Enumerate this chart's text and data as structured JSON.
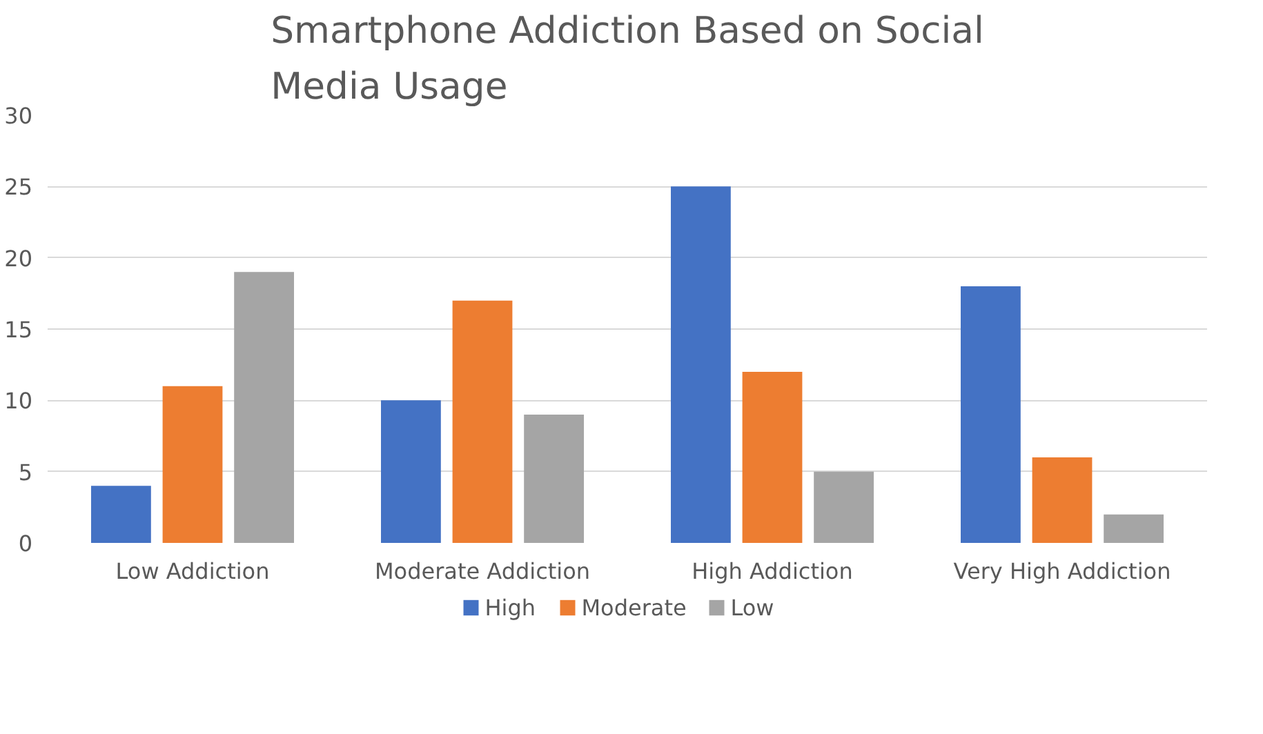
{
  "chart_data": {
    "type": "bar",
    "title": "Smartphone Addiction Based on Social Media Usage",
    "categories": [
      "Low Addiction",
      "Moderate Addiction",
      "High Addiction",
      "Very High Addiction"
    ],
    "series": [
      {
        "name": "High",
        "color": "#4472c4",
        "values": [
          4,
          10,
          25,
          18
        ]
      },
      {
        "name": "Moderate",
        "color": "#ed7d31",
        "values": [
          11,
          17,
          12,
          6
        ]
      },
      {
        "name": "Low",
        "color": "#a5a5a5",
        "values": [
          19,
          9,
          5,
          2
        ]
      }
    ],
    "ylim": [
      0,
      30
    ],
    "yticks": [
      0,
      5,
      10,
      15,
      20,
      25,
      30
    ],
    "grid": "y",
    "legend": "bottom"
  }
}
